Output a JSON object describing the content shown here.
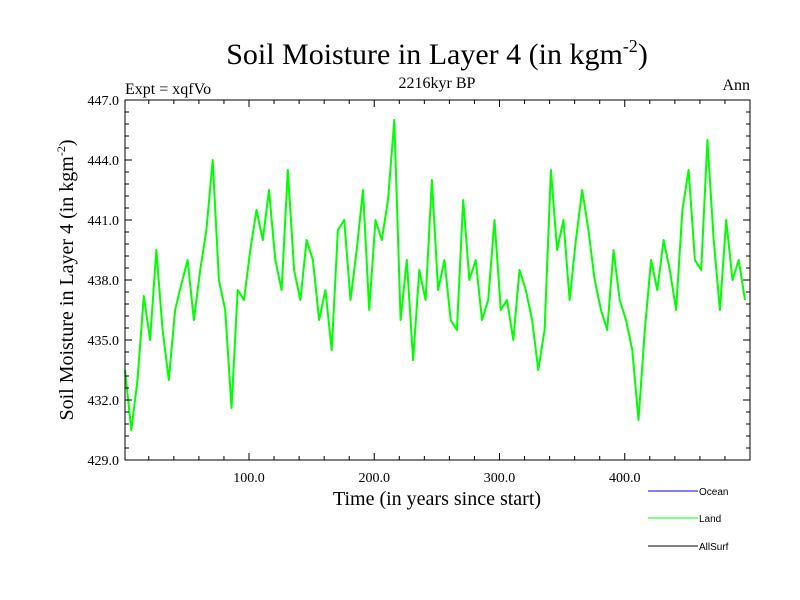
{
  "colors": {
    "land": "#00ff00",
    "ocean": "#0000ff",
    "allsurf": "#000000",
    "axis": "#000000"
  },
  "header": {
    "title_main": "Soil Moisture in Layer 4 (in kgm",
    "title_sup": "-2",
    "title_close": ")",
    "subtitle": "2216kyr BP",
    "left_label": "Expt = xqfVo",
    "right_label": "Ann"
  },
  "chart_data": {
    "type": "line",
    "title": "Soil Moisture in Layer 4 (in kgm-2)",
    "subtitle": "2216kyr BP",
    "xlabel": "Time (in years since start)",
    "ylabel": "Soil Moisture in Layer 4 (in kgm-2)",
    "ylabel_main": "Soil Moisture in Layer 4 (in kgm",
    "ylabel_sup": "-2",
    "ylabel_close": ")",
    "xlim": [
      1,
      500
    ],
    "ylim": [
      429.0,
      447.0
    ],
    "xticks": [
      100,
      200,
      300,
      400
    ],
    "xtick_labels": [
      "100.0",
      "200.0",
      "300.0",
      "400.0"
    ],
    "yticks": [
      429,
      432,
      435,
      438,
      441,
      444,
      447
    ],
    "ytick_labels": [
      "429.0",
      "432.0",
      "435.0",
      "438.0",
      "441.0",
      "444.0",
      "447.0"
    ],
    "legend_position": "bottom-right",
    "series": [
      {
        "name": "Ocean",
        "color": "#0000ff",
        "values": []
      },
      {
        "name": "Land",
        "color": "#00ff00",
        "x_start": 1,
        "x_step": 5,
        "values": [
          433.5,
          430.5,
          433.0,
          437.2,
          435.0,
          439.5,
          435.5,
          433.0,
          436.5,
          437.8,
          439.0,
          436.0,
          438.5,
          440.5,
          444.0,
          438.0,
          436.5,
          431.6,
          437.5,
          437.0,
          439.5,
          441.5,
          440.0,
          442.5,
          439.0,
          437.5,
          443.5,
          438.5,
          437.0,
          440.0,
          439.0,
          436.0,
          437.5,
          434.5,
          440.5,
          441.0,
          437.0,
          439.5,
          442.5,
          436.5,
          441.0,
          440.0,
          442.0,
          446.0,
          436.0,
          439.0,
          434.0,
          438.5,
          437.0,
          443.0,
          437.5,
          439.0,
          436.0,
          435.5,
          442.0,
          438.0,
          439.0,
          436.0,
          437.0,
          441.0,
          436.5,
          437.0,
          435.0,
          438.5,
          437.5,
          436.0,
          433.5,
          435.5,
          443.5,
          439.5,
          441.0,
          437.0,
          440.0,
          442.5,
          440.5,
          438.0,
          436.5,
          435.5,
          439.5,
          437.0,
          436.0,
          434.5,
          431.0,
          435.5,
          439.0,
          437.5,
          440.0,
          438.5,
          436.5,
          441.5,
          443.5,
          439.0,
          438.5,
          445.0,
          440.0,
          436.5,
          441.0,
          438.0,
          439.0,
          437.0
        ]
      },
      {
        "name": "AllSurf",
        "color": "#000000",
        "values": []
      }
    ]
  }
}
